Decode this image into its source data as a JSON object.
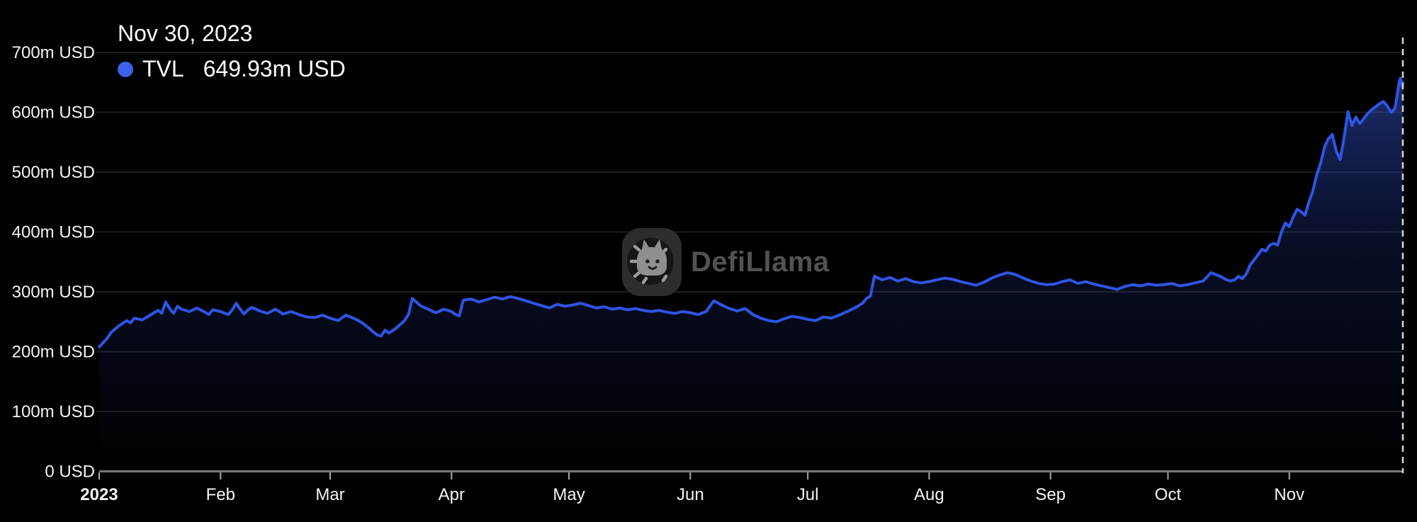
{
  "tooltip": {
    "date": "Nov 30, 2023",
    "series": "TVL",
    "value": "649.93m USD"
  },
  "watermark": {
    "text": "DefiLlama"
  },
  "chart_data": {
    "type": "area",
    "title": "",
    "legend": {
      "entries": [
        "TVL"
      ],
      "position": "tooltip-top-left"
    },
    "x_axis": {
      "type": "time",
      "year": "2023",
      "total_days": 333,
      "ticks": [
        {
          "label": "2023",
          "day": 0,
          "bold": true
        },
        {
          "label": "Feb",
          "day": 31
        },
        {
          "label": "Mar",
          "day": 59
        },
        {
          "label": "Apr",
          "day": 90
        },
        {
          "label": "May",
          "day": 120
        },
        {
          "label": "Jun",
          "day": 151
        },
        {
          "label": "Jul",
          "day": 181
        },
        {
          "label": "Aug",
          "day": 212
        },
        {
          "label": "Sep",
          "day": 243
        },
        {
          "label": "Oct",
          "day": 273
        },
        {
          "label": "Nov",
          "day": 304
        }
      ],
      "crosshair_day": 333
    },
    "y_axis": {
      "unit": "USD",
      "range": [
        0,
        700
      ],
      "grid": true,
      "ticks": [
        {
          "label": "0 USD",
          "value": 0
        },
        {
          "label": "100m USD",
          "value": 100
        },
        {
          "label": "200m USD",
          "value": 200
        },
        {
          "label": "300m USD",
          "value": 300
        },
        {
          "label": "400m USD",
          "value": 400
        },
        {
          "label": "500m USD",
          "value": 500
        },
        {
          "label": "600m USD",
          "value": 600
        },
        {
          "label": "700m USD",
          "value": 700
        }
      ]
    },
    "series": [
      {
        "name": "TVL",
        "unit": "m USD",
        "last_point": {
          "date": "Nov 30, 2023",
          "value": 649.93
        },
        "points": [
          [
            0,
            208
          ],
          [
            1,
            215
          ],
          [
            2,
            222
          ],
          [
            3,
            232
          ],
          [
            5,
            243
          ],
          [
            7,
            252
          ],
          [
            8,
            248
          ],
          [
            9,
            256
          ],
          [
            11,
            253
          ],
          [
            13,
            261
          ],
          [
            15,
            269
          ],
          [
            16,
            264
          ],
          [
            17,
            283
          ],
          [
            18,
            272
          ],
          [
            19,
            264
          ],
          [
            20,
            276
          ],
          [
            21,
            271
          ],
          [
            23,
            267
          ],
          [
            25,
            273
          ],
          [
            27,
            266
          ],
          [
            28,
            262
          ],
          [
            29,
            270
          ],
          [
            31,
            267
          ],
          [
            33,
            262
          ],
          [
            34,
            270
          ],
          [
            35,
            281
          ],
          [
            36,
            271
          ],
          [
            37,
            263
          ],
          [
            38,
            270
          ],
          [
            39,
            274
          ],
          [
            41,
            268
          ],
          [
            43,
            264
          ],
          [
            45,
            271
          ],
          [
            47,
            263
          ],
          [
            49,
            267
          ],
          [
            51,
            262
          ],
          [
            53,
            258
          ],
          [
            55,
            257
          ],
          [
            57,
            261
          ],
          [
            59,
            256
          ],
          [
            61,
            252
          ],
          [
            63,
            261
          ],
          [
            65,
            256
          ],
          [
            67,
            249
          ],
          [
            68,
            244
          ],
          [
            69,
            239
          ],
          [
            70,
            233
          ],
          [
            71,
            228
          ],
          [
            72,
            226
          ],
          [
            73,
            236
          ],
          [
            74,
            231
          ],
          [
            76,
            240
          ],
          [
            78,
            252
          ],
          [
            79,
            262
          ],
          [
            80,
            289
          ],
          [
            81,
            283
          ],
          [
            82,
            277
          ],
          [
            84,
            271
          ],
          [
            86,
            265
          ],
          [
            88,
            271
          ],
          [
            90,
            267
          ],
          [
            91,
            262
          ],
          [
            92,
            260
          ],
          [
            93,
            286
          ],
          [
            95,
            288
          ],
          [
            97,
            283
          ],
          [
            99,
            287
          ],
          [
            101,
            291
          ],
          [
            103,
            288
          ],
          [
            105,
            292
          ],
          [
            107,
            289
          ],
          [
            109,
            285
          ],
          [
            111,
            281
          ],
          [
            113,
            277
          ],
          [
            115,
            273
          ],
          [
            117,
            279
          ],
          [
            119,
            276
          ],
          [
            121,
            278
          ],
          [
            123,
            281
          ],
          [
            125,
            277
          ],
          [
            127,
            273
          ],
          [
            129,
            275
          ],
          [
            131,
            271
          ],
          [
            133,
            273
          ],
          [
            135,
            270
          ],
          [
            137,
            272
          ],
          [
            139,
            269
          ],
          [
            141,
            267
          ],
          [
            143,
            269
          ],
          [
            145,
            266
          ],
          [
            147,
            264
          ],
          [
            149,
            267
          ],
          [
            151,
            265
          ],
          [
            153,
            262
          ],
          [
            155,
            267
          ],
          [
            157,
            285
          ],
          [
            159,
            278
          ],
          [
            161,
            272
          ],
          [
            163,
            268
          ],
          [
            165,
            272
          ],
          [
            167,
            262
          ],
          [
            169,
            256
          ],
          [
            171,
            252
          ],
          [
            173,
            250
          ],
          [
            175,
            255
          ],
          [
            177,
            259
          ],
          [
            179,
            257
          ],
          [
            181,
            254
          ],
          [
            183,
            252
          ],
          [
            185,
            258
          ],
          [
            187,
            256
          ],
          [
            189,
            261
          ],
          [
            191,
            267
          ],
          [
            193,
            273
          ],
          [
            195,
            281
          ],
          [
            196,
            289
          ],
          [
            197,
            293
          ],
          [
            198,
            326
          ],
          [
            200,
            320
          ],
          [
            202,
            324
          ],
          [
            204,
            318
          ],
          [
            206,
            322
          ],
          [
            208,
            317
          ],
          [
            210,
            315
          ],
          [
            212,
            317
          ],
          [
            214,
            320
          ],
          [
            216,
            323
          ],
          [
            218,
            321
          ],
          [
            220,
            317
          ],
          [
            222,
            314
          ],
          [
            224,
            311
          ],
          [
            226,
            316
          ],
          [
            228,
            323
          ],
          [
            230,
            328
          ],
          [
            232,
            332
          ],
          [
            234,
            329
          ],
          [
            236,
            323
          ],
          [
            238,
            318
          ],
          [
            240,
            314
          ],
          [
            242,
            312
          ],
          [
            244,
            313
          ],
          [
            246,
            317
          ],
          [
            248,
            320
          ],
          [
            250,
            314
          ],
          [
            252,
            317
          ],
          [
            254,
            313
          ],
          [
            256,
            310
          ],
          [
            258,
            307
          ],
          [
            260,
            304
          ],
          [
            262,
            309
          ],
          [
            264,
            312
          ],
          [
            266,
            310
          ],
          [
            268,
            313
          ],
          [
            270,
            311
          ],
          [
            272,
            312
          ],
          [
            274,
            314
          ],
          [
            276,
            310
          ],
          [
            278,
            312
          ],
          [
            280,
            315
          ],
          [
            282,
            318
          ],
          [
            284,
            332
          ],
          [
            286,
            327
          ],
          [
            288,
            320
          ],
          [
            289,
            318
          ],
          [
            290,
            320
          ],
          [
            291,
            326
          ],
          [
            292,
            322
          ],
          [
            293,
            330
          ],
          [
            294,
            345
          ],
          [
            295,
            353
          ],
          [
            296,
            362
          ],
          [
            297,
            371
          ],
          [
            298,
            368
          ],
          [
            299,
            378
          ],
          [
            300,
            381
          ],
          [
            301,
            378
          ],
          [
            302,
            400
          ],
          [
            303,
            415
          ],
          [
            304,
            409
          ],
          [
            305,
            425
          ],
          [
            306,
            438
          ],
          [
            307,
            434
          ],
          [
            308,
            428
          ],
          [
            309,
            450
          ],
          [
            310,
            468
          ],
          [
            311,
            495
          ],
          [
            312,
            515
          ],
          [
            313,
            542
          ],
          [
            314,
            556
          ],
          [
            315,
            563
          ],
          [
            316,
            535
          ],
          [
            317,
            521
          ],
          [
            318,
            558
          ],
          [
            319,
            601
          ],
          [
            320,
            578
          ],
          [
            321,
            592
          ],
          [
            322,
            581
          ],
          [
            323,
            589
          ],
          [
            324,
            598
          ],
          [
            325,
            604
          ],
          [
            326,
            609
          ],
          [
            327,
            614
          ],
          [
            328,
            618
          ],
          [
            329,
            611
          ],
          [
            330,
            600
          ],
          [
            331,
            606
          ],
          [
            332,
            648
          ],
          [
            332.4,
            657
          ],
          [
            332.8,
            644
          ],
          [
            333,
            649.93
          ]
        ]
      }
    ],
    "colors": {
      "background": "#000000",
      "line": "#2F55E5",
      "tooltip_dot": "#3B62E8",
      "area_top": "rgba(62,100,235,0.5)",
      "area_mid": "rgba(47,82,220,0.18)",
      "area_bottom": "rgba(40,70,200,0)",
      "gridline": "#1D1D1D",
      "axis_line": "#787878",
      "tick": "#AAAAAA",
      "axis_label": "#F5F5F5",
      "crosshair": "#D8D8D8",
      "watermark_text": "#525252"
    }
  }
}
